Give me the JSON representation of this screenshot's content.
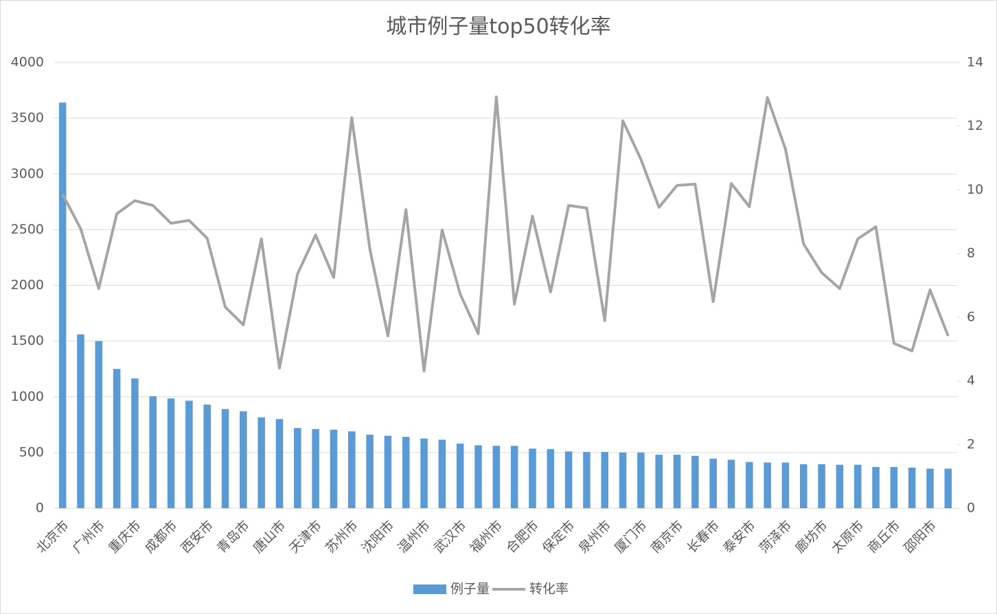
{
  "chart_data": {
    "type": "combo",
    "title": "城市例子量top50转化率",
    "categories": [
      "北京市",
      null,
      "广州市",
      null,
      "重庆市",
      null,
      "成都市",
      null,
      "西安市",
      null,
      "青岛市",
      null,
      "唐山市",
      null,
      "天津市",
      null,
      "苏州市",
      null,
      "沈阳市",
      null,
      "温州市",
      null,
      "武汉市",
      null,
      "福州市",
      null,
      "合肥市",
      null,
      "保定市",
      null,
      "泉州市",
      null,
      "厦门市",
      null,
      "南京市",
      null,
      "长春市",
      null,
      "泰安市",
      null,
      "菏泽市",
      null,
      "廊坊市",
      null,
      "太原市",
      null,
      "商丘市",
      null,
      "邵阳市",
      null
    ],
    "series": [
      {
        "name": "例子量",
        "type": "bar",
        "color": "#5b9bd5",
        "values": [
          3640,
          1560,
          1500,
          1250,
          1165,
          1005,
          985,
          965,
          930,
          890,
          870,
          815,
          800,
          720,
          710,
          705,
          690,
          660,
          650,
          640,
          625,
          615,
          580,
          565,
          560,
          560,
          535,
          530,
          510,
          505,
          505,
          500,
          500,
          480,
          480,
          470,
          445,
          435,
          415,
          410,
          410,
          395,
          395,
          390,
          390,
          370,
          370,
          365,
          355,
          355
        ]
      },
      {
        "name": "转化率",
        "type": "line",
        "axis": "y2",
        "color": "#a5a5a5",
        "values": [
          9.86,
          8.78,
          6.9,
          9.25,
          9.66,
          9.51,
          8.95,
          9.04,
          8.48,
          6.32,
          5.76,
          8.46,
          4.4,
          7.36,
          8.58,
          7.25,
          12.27,
          8.15,
          5.41,
          9.38,
          4.31,
          8.74,
          6.73,
          5.48,
          12.92,
          6.41,
          9.17,
          6.79,
          9.51,
          9.43,
          5.89,
          12.17,
          10.96,
          9.45,
          10.14,
          10.18,
          6.49,
          10.2,
          9.47,
          12.9,
          11.28,
          8.3,
          7.4,
          6.9,
          8.46,
          8.84,
          5.18,
          4.94,
          6.86,
          5.41
        ]
      }
    ],
    "ylim": [
      0,
      4000
    ],
    "yticks": [
      0,
      500,
      1000,
      1500,
      2000,
      2500,
      3000,
      3500,
      4000
    ],
    "y2lim": [
      0,
      14
    ],
    "y2ticks": [
      0,
      2,
      4,
      6,
      8,
      10,
      12,
      14
    ],
    "grid": true,
    "legend": "bottom"
  }
}
